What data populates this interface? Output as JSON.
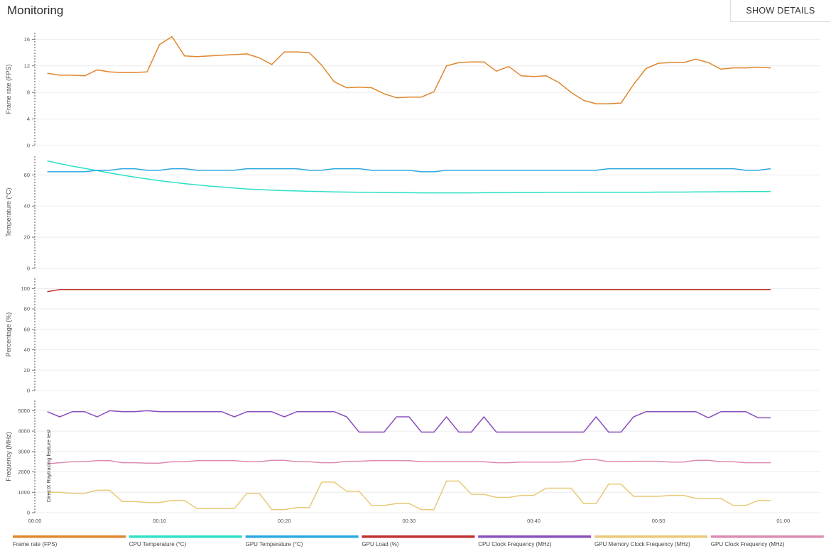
{
  "header": {
    "title": "Monitoring",
    "details_button_label": "SHOW DETAILS"
  },
  "chart_data": {
    "type": "line",
    "x_ticks": [
      "00:00",
      "00:10",
      "00:20",
      "00:30",
      "00:40",
      "00:50",
      "01:00"
    ],
    "x_range_seconds": [
      0,
      64
    ],
    "x_seconds": [
      1,
      2,
      3,
      4,
      5,
      6,
      7,
      8,
      9,
      10,
      11,
      12,
      13,
      14,
      15,
      16,
      17,
      18,
      19,
      20,
      21,
      22,
      23,
      24,
      25,
      26,
      27,
      28,
      29,
      30,
      31,
      32,
      33,
      34,
      35,
      36,
      37,
      38,
      39,
      40,
      41,
      42,
      43,
      44,
      45,
      46,
      47,
      48,
      49,
      50,
      51,
      52,
      53,
      54,
      55,
      56,
      57,
      58,
      59
    ],
    "annotation": {
      "label": "DirectX Raytracing feature test",
      "x_seconds": 0.8
    },
    "panels": [
      {
        "ylabel": "Frame rate (FPS)",
        "ylim": [
          0,
          17
        ],
        "y_ticks": [
          0,
          4,
          8,
          12,
          16
        ],
        "grid": true,
        "series": [
          {
            "name": "Frame rate (FPS)",
            "color": "#e0862e",
            "values": [
              10.9,
              10.6,
              10.6,
              10.5,
              11.4,
              11.1,
              11.0,
              11.0,
              11.1,
              15.2,
              16.4,
              13.5,
              13.4,
              13.5,
              13.6,
              13.7,
              13.8,
              13.2,
              12.2,
              14.1,
              14.1,
              14.0,
              12.1,
              9.6,
              8.7,
              8.8,
              8.7,
              7.8,
              7.2,
              7.3,
              7.3,
              8.1,
              12.0,
              12.5,
              12.6,
              12.6,
              11.2,
              11.9,
              10.5,
              10.4,
              10.5,
              9.5,
              8.0,
              6.8,
              6.3,
              6.3,
              6.4,
              9.2,
              11.6,
              12.4,
              12.5,
              12.5,
              13.0,
              12.5,
              11.5,
              11.7,
              11.7,
              11.8,
              11.7
            ]
          }
        ]
      },
      {
        "ylabel": "Temperature (°C)",
        "ylim": [
          0,
          72
        ],
        "y_ticks": [
          0,
          20,
          40,
          60
        ],
        "grid": true,
        "series": [
          {
            "name": "CPU Temperature (°C)",
            "color": "#2de0c6",
            "values": [
              69,
              67.2,
              65.6,
              64.2,
              62.8,
              61.3,
              59.9,
              58.6,
              57.4,
              56.3,
              55.3,
              54.4,
              53.6,
              52.8,
              52.2,
              51.6,
              51.0,
              50.6,
              50.2,
              49.9,
              49.7,
              49.5,
              49.3,
              49.1,
              49.0,
              48.9,
              48.8,
              48.7,
              48.6,
              48.6,
              48.5,
              48.5,
              48.5,
              48.5,
              48.5,
              48.6,
              48.6,
              48.6,
              48.7,
              48.7,
              48.8,
              48.8,
              48.8,
              48.9,
              48.9,
              48.9,
              48.9,
              48.9,
              48.9,
              49.0,
              49.0,
              49.0,
              49.1,
              49.1,
              49.2,
              49.2,
              49.3,
              49.3,
              49.4
            ]
          },
          {
            "name": "GPU Temperature (°C)",
            "color": "#2aa7e0",
            "values": [
              62,
              62,
              62,
              62,
              63,
              63,
              64,
              64,
              63,
              63,
              64,
              64,
              63,
              63,
              63,
              63,
              64,
              64,
              64,
              64,
              64,
              63,
              63,
              64,
              64,
              64,
              63,
              63,
              63,
              63,
              62,
              62,
              63,
              63,
              63,
              63,
              63,
              63,
              63,
              63,
              63,
              63,
              63,
              63,
              63,
              64,
              64,
              64,
              64,
              64,
              64,
              64,
              64,
              64,
              64,
              64,
              63,
              63,
              64
            ]
          }
        ]
      },
      {
        "ylabel": "Percentage (%)",
        "ylim": [
          0,
          110
        ],
        "y_ticks": [
          0,
          20,
          40,
          60,
          80,
          100
        ],
        "grid": true,
        "series": [
          {
            "name": "GPU Load (%)",
            "color": "#c0302f",
            "values": [
              97,
              99,
              99,
              99,
              99,
              99,
              99,
              99,
              99,
              99,
              99,
              99,
              99,
              99,
              99,
              99,
              99,
              99,
              99,
              99,
              99,
              99,
              99,
              99,
              99,
              99,
              99,
              99,
              99,
              99,
              99,
              99,
              99,
              99,
              99,
              99,
              99,
              99,
              99,
              99,
              99,
              99,
              99,
              99,
              99,
              99,
              99,
              99,
              99,
              99,
              99,
              99,
              99,
              99,
              99,
              99,
              99,
              99,
              99
            ]
          }
        ]
      },
      {
        "ylabel": "Frequency (MHz)",
        "ylim": [
          0,
          5500
        ],
        "y_ticks": [
          0,
          1000,
          2000,
          3000,
          4000,
          5000
        ],
        "grid": true,
        "series": [
          {
            "name": "CPU Clock Frequency (MHz)",
            "color": "#8a4fbf",
            "values": [
              4950,
              4700,
              4950,
              4950,
              4700,
              5000,
              4950,
              4950,
              5000,
              4950,
              4950,
              4950,
              4950,
              4950,
              4950,
              4700,
              4950,
              4950,
              4950,
              4700,
              4950,
              4950,
              4950,
              4950,
              4700,
              3950,
              3950,
              3950,
              4700,
              4700,
              3950,
              3950,
              4700,
              3950,
              3950,
              4700,
              3950,
              3950,
              3950,
              3950,
              3950,
              3950,
              3950,
              3950,
              4700,
              3950,
              3950,
              4700,
              4950,
              4950,
              4950,
              4950,
              4950,
              4650,
              4950,
              4950,
              4950,
              4650,
              4650
            ]
          },
          {
            "name": "GPU Memory Clock Frequency (MHz)",
            "color": "#e8c978",
            "values": [
              1000,
              1000,
              950,
              950,
              1100,
              1100,
              550,
              550,
              500,
              500,
              600,
              600,
              200,
              200,
              200,
              200,
              950,
              950,
              150,
              150,
              250,
              250,
              1500,
              1500,
              1050,
              1050,
              350,
              350,
              450,
              450,
              150,
              150,
              1550,
              1550,
              900,
              900,
              750,
              750,
              850,
              850,
              1200,
              1200,
              1200,
              450,
              450,
              1400,
              1400,
              800,
              800,
              800,
              850,
              850,
              700,
              700,
              700,
              350,
              350,
              600,
              600
            ]
          },
          {
            "name": "GPU Clock Frequency (MHz)",
            "color": "#dc8ab0",
            "values": [
              2400,
              2450,
              2500,
              2500,
              2550,
              2550,
              2450,
              2450,
              2430,
              2430,
              2500,
              2500,
              2550,
              2550,
              2550,
              2550,
              2500,
              2500,
              2570,
              2570,
              2500,
              2500,
              2450,
              2450,
              2520,
              2520,
              2550,
              2550,
              2550,
              2550,
              2500,
              2500,
              2500,
              2500,
              2500,
              2500,
              2450,
              2450,
              2480,
              2480,
              2480,
              2480,
              2500,
              2600,
              2600,
              2500,
              2500,
              2520,
              2520,
              2520,
              2480,
              2480,
              2570,
              2570,
              2500,
              2500,
              2450,
              2450,
              2450
            ]
          }
        ]
      }
    ],
    "legend": {
      "placement": "bottom",
      "entries": [
        {
          "label": "Frame rate (FPS)",
          "color": "#e0862e"
        },
        {
          "label": "CPU Temperature (°C)",
          "color": "#2de0c6"
        },
        {
          "label": "GPU Temperature (°C)",
          "color": "#2aa7e0"
        },
        {
          "label": "GPU Load (%)",
          "color": "#c0302f"
        },
        {
          "label": "CPU Clock Frequency (MHz)",
          "color": "#8a4fbf"
        },
        {
          "label": "GPU Memory Clock Frequency (MHz)",
          "color": "#e8c978"
        },
        {
          "label": "GPU Clock Frequency (MHz)",
          "color": "#dc8ab0"
        }
      ]
    }
  }
}
